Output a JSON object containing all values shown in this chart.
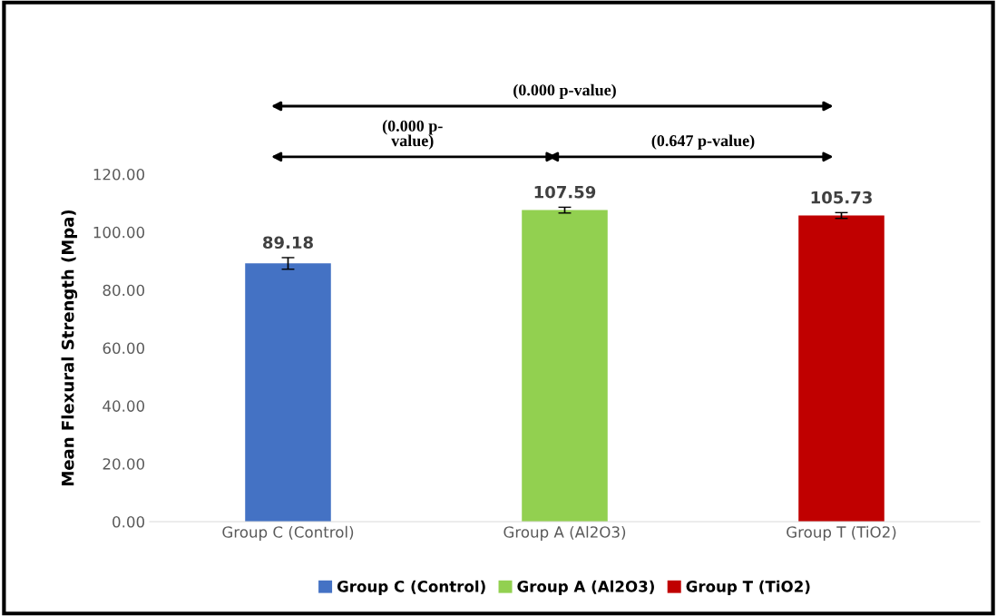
{
  "chart_data": {
    "type": "bar",
    "ylabel": "Mean Flexural Strength (Mpa)",
    "categories": [
      "Group C (Control)",
      "Group A (Al2O3)",
      "Group T (TiO2)"
    ],
    "series": [
      {
        "name": "Group C (Control)",
        "color": "#4472c4",
        "values": [
          89.18,
          null,
          null
        ],
        "errors": [
          2,
          null,
          null
        ]
      },
      {
        "name": "Group A (Al2O3)",
        "color": "#92d050",
        "values": [
          null,
          107.59,
          null
        ],
        "errors": [
          null,
          1,
          null
        ]
      },
      {
        "name": "Group T (TiO2)",
        "color": "#c00000",
        "values": [
          null,
          null,
          105.73
        ],
        "errors": [
          null,
          null,
          1
        ]
      }
    ],
    "ylim": [
      0,
      120
    ],
    "yticks": [
      {
        "value": 0,
        "label": "0.00"
      },
      {
        "value": 20,
        "label": "20.00"
      },
      {
        "value": 40,
        "label": "40.00"
      },
      {
        "value": 60,
        "label": "60.00"
      },
      {
        "value": 80,
        "label": "80.00"
      },
      {
        "value": 100,
        "label": "100.00"
      },
      {
        "value": 120,
        "label": "120.00"
      }
    ],
    "grid": false,
    "legend": "bottom",
    "data_labels": true,
    "annotations": [
      "(0.000 p-value)",
      "(0.000 p-\nvalue)",
      "(0.647 p-value)"
    ]
  }
}
